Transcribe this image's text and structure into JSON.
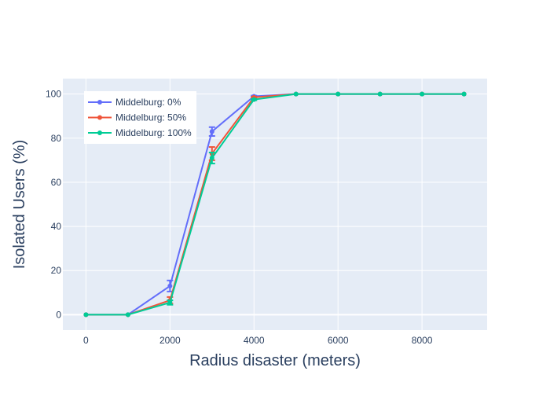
{
  "chart_data": {
    "type": "line",
    "xlabel": "Radius disaster (meters)",
    "ylabel": "Isolated Users (%)",
    "xlim": [
      -550,
      9550
    ],
    "ylim": [
      -7,
      107
    ],
    "xticks": [
      0,
      2000,
      4000,
      6000,
      8000
    ],
    "yticks": [
      0,
      20,
      40,
      60,
      80,
      100
    ],
    "grid": true,
    "legend_position": "top-left",
    "x": [
      0,
      1000,
      2000,
      3000,
      4000,
      5000,
      6000,
      7000,
      8000,
      9000
    ],
    "series": [
      {
        "name": "Middelburg: 0%",
        "color": "#636efa",
        "values": [
          0,
          0,
          13,
          83,
          99,
          100,
          100,
          100,
          100,
          100
        ],
        "error": [
          0,
          0,
          2.5,
          2,
          0.3,
          0,
          0,
          0,
          0,
          0
        ]
      },
      {
        "name": "Middelburg: 50%",
        "color": "#ef553b",
        "values": [
          0,
          0,
          6.5,
          73,
          98.5,
          100,
          100,
          100,
          100,
          100
        ],
        "error": [
          0,
          0,
          1.5,
          3,
          0.3,
          0,
          0,
          0,
          0,
          0
        ]
      },
      {
        "name": "Middelburg: 100%",
        "color": "#00cc96",
        "values": [
          0,
          0,
          5.5,
          71,
          97.5,
          100,
          100,
          100,
          100,
          100
        ],
        "error": [
          0,
          0,
          1,
          2.5,
          0.3,
          0,
          0,
          0,
          0,
          0
        ]
      }
    ]
  }
}
